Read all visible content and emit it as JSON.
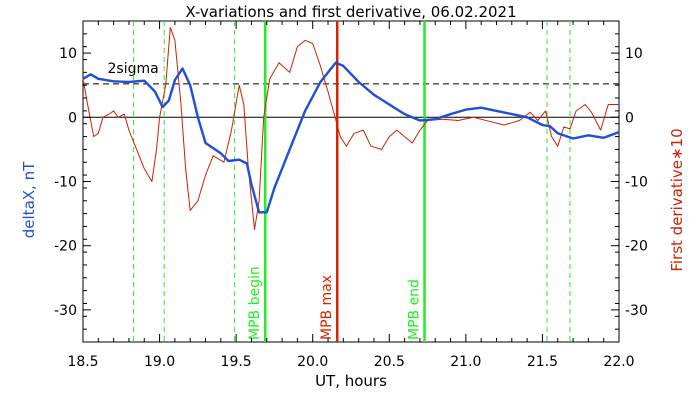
{
  "chart_data": {
    "type": "line",
    "title": "X-variations and first derivative, 06.02.2021",
    "xlabel": "UT, hours",
    "ylabel_left": "deltaX, nT",
    "ylabel_right": "First derivative∗10",
    "xlim": [
      18.5,
      22.0
    ],
    "ylim": [
      -35,
      15
    ],
    "x_ticks": [
      "18.5",
      "19.0",
      "19.5",
      "20.0",
      "20.5",
      "21.0",
      "21.5",
      "22.0"
    ],
    "y_ticks": [
      "10",
      "0",
      "-10",
      "-20",
      "-30"
    ],
    "y_tick_values": [
      10,
      0,
      -10,
      -20,
      -30
    ],
    "x_tick_values": [
      18.5,
      19.0,
      19.5,
      20.0,
      20.5,
      21.0,
      21.5,
      22.0
    ],
    "colors": {
      "deltaX": "#1f4fd6",
      "derivative": "#cc2200",
      "mpb_line": "#22ee22",
      "max_line": "#dd2200",
      "sigma": "#000000"
    },
    "two_sigma": {
      "label": "2sigma",
      "value": 5.2
    },
    "series": [
      {
        "key": "deltaX",
        "points": [
          [
            18.5,
            6.0
          ],
          [
            18.55,
            6.7
          ],
          [
            18.6,
            6.0
          ],
          [
            18.7,
            5.6
          ],
          [
            18.8,
            5.5
          ],
          [
            18.9,
            5.7
          ],
          [
            18.97,
            4.0
          ],
          [
            19.02,
            1.6
          ],
          [
            19.06,
            2.6
          ],
          [
            19.1,
            5.8
          ],
          [
            19.15,
            7.6
          ],
          [
            19.2,
            5.0
          ],
          [
            19.25,
            0.0
          ],
          [
            19.3,
            -4.0
          ],
          [
            19.4,
            -5.6
          ],
          [
            19.45,
            -6.8
          ],
          [
            19.52,
            -6.6
          ],
          [
            19.57,
            -7.2
          ],
          [
            19.6,
            -10.5
          ],
          [
            19.65,
            -14.8
          ],
          [
            19.7,
            -14.8
          ],
          [
            19.75,
            -11.0
          ],
          [
            19.85,
            -5.0
          ],
          [
            19.95,
            1.0
          ],
          [
            20.05,
            5.5
          ],
          [
            20.15,
            8.5
          ],
          [
            20.2,
            8.0
          ],
          [
            20.3,
            5.5
          ],
          [
            20.4,
            3.5
          ],
          [
            20.5,
            2.0
          ],
          [
            20.6,
            0.5
          ],
          [
            20.7,
            -0.5
          ],
          [
            20.8,
            -0.3
          ],
          [
            20.9,
            0.5
          ],
          [
            21.0,
            1.2
          ],
          [
            21.1,
            1.5
          ],
          [
            21.2,
            1.0
          ],
          [
            21.3,
            0.5
          ],
          [
            21.4,
            0.0
          ],
          [
            21.5,
            -1.2
          ],
          [
            21.55,
            -1.4
          ],
          [
            21.6,
            -2.5
          ],
          [
            21.7,
            -3.3
          ],
          [
            21.8,
            -2.8
          ],
          [
            21.9,
            -3.2
          ],
          [
            22.0,
            -2.3
          ]
        ]
      },
      {
        "key": "derivative",
        "points": [
          [
            18.5,
            6.0
          ],
          [
            18.53,
            2.0
          ],
          [
            18.57,
            -3.0
          ],
          [
            18.6,
            -2.5
          ],
          [
            18.63,
            0.0
          ],
          [
            18.67,
            0.5
          ],
          [
            18.7,
            1.0
          ],
          [
            18.73,
            0.0
          ],
          [
            18.77,
            0.5
          ],
          [
            18.8,
            -2.0
          ],
          [
            18.85,
            -5.0
          ],
          [
            18.9,
            -8.0
          ],
          [
            18.95,
            -10.0
          ],
          [
            18.98,
            -5.0
          ],
          [
            19.0,
            0.0
          ],
          [
            19.04,
            5.0
          ],
          [
            19.07,
            14.0
          ],
          [
            19.1,
            12.0
          ],
          [
            19.14,
            2.0
          ],
          [
            19.17,
            -8.0
          ],
          [
            19.2,
            -14.5
          ],
          [
            19.25,
            -13.0
          ],
          [
            19.3,
            -9.0
          ],
          [
            19.35,
            -6.0
          ],
          [
            19.42,
            -7.0
          ],
          [
            19.47,
            -2.0
          ],
          [
            19.52,
            5.0
          ],
          [
            19.55,
            2.0
          ],
          [
            19.58,
            -8.0
          ],
          [
            19.62,
            -17.5
          ],
          [
            19.65,
            -13.0
          ],
          [
            19.68,
            0.0
          ],
          [
            19.72,
            6.0
          ],
          [
            19.78,
            8.5
          ],
          [
            19.85,
            7.0
          ],
          [
            19.9,
            11.0
          ],
          [
            19.95,
            12.0
          ],
          [
            20.0,
            11.5
          ],
          [
            20.05,
            8.0
          ],
          [
            20.1,
            4.0
          ],
          [
            20.14,
            0.5
          ],
          [
            20.18,
            -3.0
          ],
          [
            20.22,
            -4.5
          ],
          [
            20.27,
            -2.5
          ],
          [
            20.33,
            -2.0
          ],
          [
            20.38,
            -4.5
          ],
          [
            20.45,
            -5.0
          ],
          [
            20.5,
            -3.0
          ],
          [
            20.55,
            -2.0
          ],
          [
            20.6,
            -3.0
          ],
          [
            20.65,
            -4.0
          ],
          [
            20.7,
            -2.0
          ],
          [
            20.75,
            -0.5
          ],
          [
            20.85,
            -0.3
          ],
          [
            20.95,
            -0.5
          ],
          [
            21.05,
            0.0
          ],
          [
            21.15,
            -0.6
          ],
          [
            21.25,
            -1.2
          ],
          [
            21.35,
            -0.5
          ],
          [
            21.42,
            0.8
          ],
          [
            21.47,
            -0.5
          ],
          [
            21.52,
            1.0
          ],
          [
            21.56,
            -3.0
          ],
          [
            21.6,
            -4.5
          ],
          [
            21.64,
            -1.5
          ],
          [
            21.68,
            -1.8
          ],
          [
            21.72,
            1.0
          ],
          [
            21.78,
            2.0
          ],
          [
            21.82,
            0.8
          ],
          [
            21.88,
            -2.0
          ],
          [
            21.93,
            2.0
          ],
          [
            21.97,
            2.0
          ],
          [
            22.0,
            2.0
          ]
        ]
      }
    ],
    "vertical_markers": [
      {
        "x": 18.83,
        "style": "dashed",
        "color_key": "mpb_line",
        "label": ""
      },
      {
        "x": 19.03,
        "style": "dashed",
        "color_key": "mpb_line",
        "label": ""
      },
      {
        "x": 19.49,
        "style": "dashed",
        "color_key": "mpb_line",
        "label": ""
      },
      {
        "x": 19.69,
        "style": "solid",
        "color_key": "mpb_line",
        "label": "MPB begin"
      },
      {
        "x": 20.16,
        "style": "solid",
        "color_key": "max_line",
        "label": "MPB max"
      },
      {
        "x": 20.73,
        "style": "solid",
        "color_key": "mpb_line",
        "label": "MPB end"
      },
      {
        "x": 21.53,
        "style": "dashed",
        "color_key": "mpb_line",
        "label": ""
      },
      {
        "x": 21.68,
        "style": "dashed",
        "color_key": "mpb_line",
        "label": ""
      }
    ]
  }
}
